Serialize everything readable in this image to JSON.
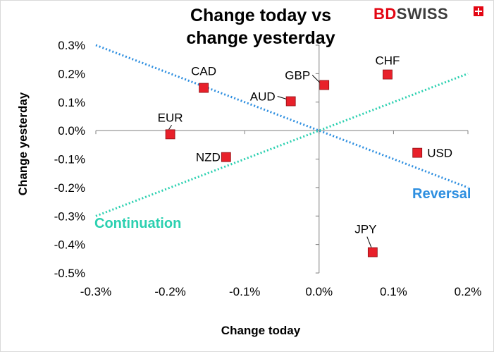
{
  "logo": {
    "part1": "BD",
    "part2": "SWISS"
  },
  "chart_data": {
    "type": "scatter",
    "title": "Change today vs change yesterday",
    "title_lines": [
      "Change today vs",
      "change yesterday"
    ],
    "xlabel": "Change today",
    "ylabel": "Change yesterday",
    "xlim": [
      -0.3,
      0.2
    ],
    "ylim": [
      -0.5,
      0.3
    ],
    "x_ticks": [
      -0.3,
      -0.2,
      -0.1,
      0.0,
      0.1,
      0.2
    ],
    "x_tick_labels": [
      "-0.3%",
      "-0.2%",
      "-0.1%",
      "0.0%",
      "0.1%",
      "0.2%"
    ],
    "y_ticks": [
      0.3,
      0.2,
      0.1,
      0.0,
      -0.1,
      -0.2,
      -0.3,
      -0.4,
      -0.5
    ],
    "y_tick_labels": [
      "0.3%",
      "0.2%",
      "0.1%",
      "0.0%",
      "-0.1%",
      "-0.2%",
      "-0.3%",
      "-0.4%",
      "-0.5%"
    ],
    "grid": false,
    "points": [
      {
        "label": "CAD",
        "x": -0.155,
        "y": 0.15
      },
      {
        "label": "EUR",
        "x": -0.2,
        "y": -0.013
      },
      {
        "label": "NZD",
        "x": -0.125,
        "y": -0.093
      },
      {
        "label": "AUD",
        "x": -0.038,
        "y": 0.103
      },
      {
        "label": "GBP",
        "x": 0.007,
        "y": 0.16
      },
      {
        "label": "CHF",
        "x": 0.092,
        "y": 0.197
      },
      {
        "label": "USD",
        "x": 0.132,
        "y": -0.078
      },
      {
        "label": "JPY",
        "x": 0.072,
        "y": -0.427
      }
    ],
    "reference_lines": [
      {
        "name": "Reversal",
        "x": [
          -0.3,
          0.2
        ],
        "y": [
          0.3,
          -0.2
        ],
        "color": "#2e8fe0"
      },
      {
        "name": "Continuation",
        "x": [
          -0.3,
          0.2
        ],
        "y": [
          -0.3,
          0.2
        ],
        "color": "#2bd0b0"
      }
    ],
    "marker_color": "#e8202a"
  }
}
